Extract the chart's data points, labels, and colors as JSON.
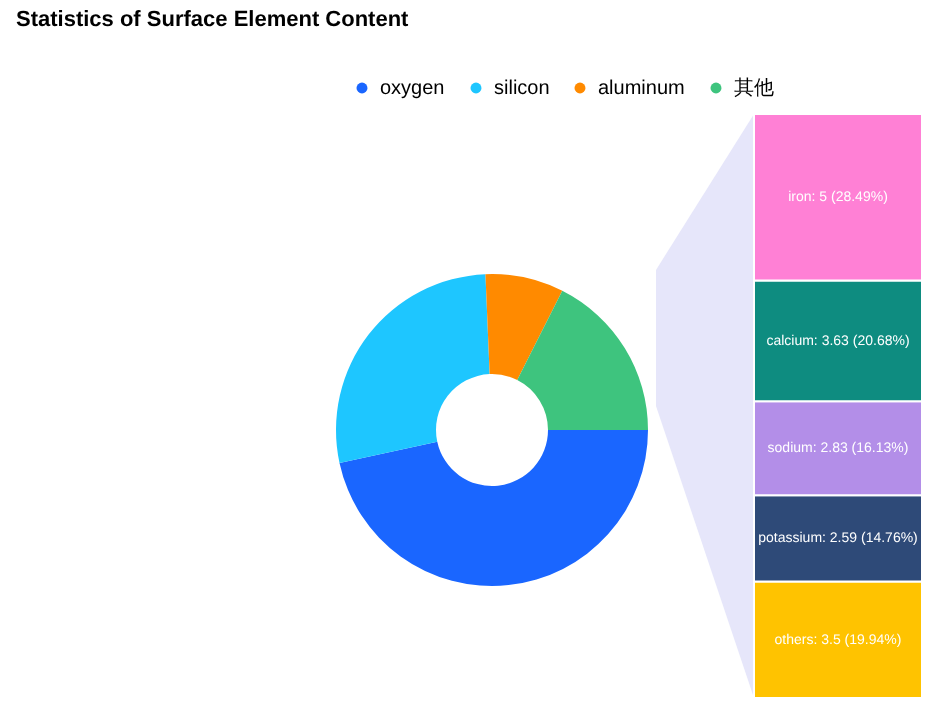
{
  "chart_data": [
    {
      "type": "donut",
      "title": "Statistics of Surface Element Content",
      "legend": "top",
      "categories": [
        "oxygen",
        "silicon",
        "aluminum",
        "其他"
      ],
      "values": [
        46.62,
        27.71,
        8.11,
        17.56
      ],
      "colors": [
        "#1a66ff",
        "#1ec6ff",
        "#ff8a00",
        "#3ec47e"
      ]
    },
    {
      "type": "bar",
      "stacked": true,
      "tick_labels": false,
      "categories": [
        null
      ],
      "series": [
        {
          "color": "#ffc300",
          "values": [
            3.5
          ],
          "value_labels": [
            "others: 3.5 (19.94%)"
          ]
        },
        {
          "color": "#2e4a78",
          "values": [
            2.59
          ],
          "value_labels": [
            "potassium: 2.59 (14.76%)"
          ]
        },
        {
          "color": "#b38ee8",
          "values": [
            2.83
          ],
          "value_labels": [
            "sodium: 2.83 (16.13%)"
          ]
        },
        {
          "color": "#0e8c80",
          "values": [
            3.63
          ],
          "value_labels": [
            "calcium: 3.63 (20.68%)"
          ]
        },
        {
          "color": "#ff80d5",
          "values": [
            5
          ],
          "value_labels": [
            "iron: 5 (28.49%)"
          ]
        }
      ]
    }
  ]
}
